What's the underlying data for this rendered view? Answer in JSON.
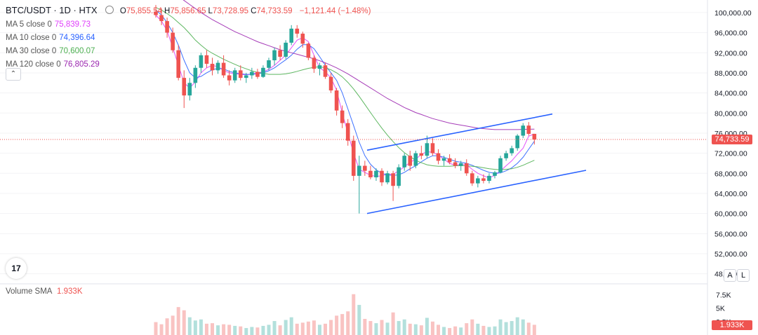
{
  "header": {
    "symbol": "BTC/USDT · 1D · HTX",
    "ohlc": [
      {
        "label": "O",
        "value": "75,855.54"
      },
      {
        "label": "H",
        "value": "75,856.65"
      },
      {
        "label": "L",
        "value": "73,728.95"
      },
      {
        "label": "C",
        "value": "74,733.59"
      }
    ],
    "change": "−1,121.44 (−1.48%)"
  },
  "indicators": [
    {
      "label": "MA 5 close 0",
      "value": "75,839.73",
      "color": "#e040fb"
    },
    {
      "label": "MA 10 close 0",
      "value": "74,396.64",
      "color": "#2962ff"
    },
    {
      "label": "MA 30 close 0",
      "value": "70,600.07",
      "color": "#4caf50"
    },
    {
      "label": "MA 120 close 0",
      "value": "76,805.29",
      "color": "#9c27b0"
    }
  ],
  "volume": {
    "label": "Volume SMA",
    "value": "1.933K",
    "tag": "1.933K"
  },
  "price_axis": [
    "100,000.00",
    "96,000.00",
    "92,000.00",
    "88,000.00",
    "84,000.00",
    "80,000.00",
    "76,000.00",
    "72,000.00",
    "68,000.00",
    "64,000.00",
    "60,000.00",
    "56,000.00",
    "52,000.00",
    "48,000.00"
  ],
  "current_price_tag": "74,733.59",
  "volume_axis": [
    "7.5K",
    "5K",
    "2.5K"
  ],
  "buttons": {
    "auto": "A",
    "log": "L",
    "collapse": "⌃"
  },
  "logo": "17",
  "colors": {
    "up": "#26a69a",
    "down": "#ef5350",
    "trend": "#2962ff"
  },
  "chart_data": {
    "type": "candlestick",
    "ylim": [
      46000,
      102500
    ],
    "current_price": 74733.59,
    "trendlines": [
      {
        "from": {
          "bar": 0,
          "price": 72600
        },
        "to": {
          "bar": 66,
          "price": 79800
        }
      },
      {
        "from": {
          "bar": 0,
          "price": 60000
        },
        "to": {
          "bar": 78,
          "price": 68600
        }
      }
    ],
    "ma_series": [
      {
        "values": [
          99500,
          98300,
          96400,
          93000,
          89500,
          86000,
          85000,
          86200,
          88000,
          89000,
          89500,
          89200,
          88500,
          88000,
          87800,
          87700,
          87600,
          87800,
          88000,
          88200,
          88700,
          89500,
          90500,
          91500,
          93000,
          94500,
          95000,
          94200,
          91500,
          89000,
          88200,
          87000,
          84500,
          80000,
          76000,
          72000,
          68800,
          68200,
          67600,
          67400,
          67500,
          67800,
          67800,
          68500,
          69300,
          70200,
          70800,
          71800,
          72300,
          72200,
          71600,
          70800,
          70000,
          69600,
          69800,
          69700,
          68800,
          68000,
          67500,
          67100,
          67600,
          68500,
          69500,
          70500,
          71800,
          73000,
          75400,
          75839.73
        ],
        "color": "#e040fb"
      },
      {
        "values": [
          100500,
          99500,
          98000,
          96000,
          93500,
          90500,
          88000,
          87000,
          87300,
          88000,
          88600,
          88900,
          88800,
          88300,
          88000,
          87800,
          87700,
          87700,
          87800,
          88000,
          88400,
          89000,
          89800,
          90600,
          91500,
          92700,
          93600,
          93600,
          92800,
          91200,
          89500,
          88000,
          86500,
          84000,
          80800,
          77500,
          74200,
          71500,
          69800,
          68700,
          68000,
          67700,
          67600,
          67700,
          68200,
          68900,
          69500,
          70300,
          71000,
          71500,
          71500,
          71200,
          70800,
          70400,
          70200,
          70000,
          69600,
          69100,
          68600,
          68200,
          68000,
          68100,
          68500,
          69100,
          70000,
          71200,
          72800,
          74396.64
        ],
        "color": "#2962ff"
      },
      {
        "values": [
          101000,
          100500,
          99800,
          99000,
          98000,
          97000,
          95800,
          94500,
          93500,
          92600,
          91900,
          91300,
          90700,
          90200,
          89700,
          89200,
          88800,
          88400,
          88100,
          87900,
          87700,
          87700,
          87700,
          87800,
          88000,
          88300,
          88600,
          88900,
          89100,
          89200,
          89000,
          88600,
          88000,
          87200,
          86100,
          84800,
          83300,
          81700,
          80100,
          78500,
          77000,
          75600,
          74300,
          73100,
          72100,
          71300,
          70600,
          70100,
          69700,
          69500,
          69400,
          69400,
          69400,
          69500,
          69500,
          69500,
          69400,
          69300,
          69100,
          68900,
          68800,
          68700,
          68800,
          68900,
          69200,
          69600,
          70100,
          70600.07
        ],
        "color": "#4caf50"
      },
      {
        "values": [
          106000,
          105400,
          104700,
          104000,
          103200,
          102400,
          101600,
          100800,
          100000,
          99300,
          98600,
          98000,
          97400,
          96800,
          96200,
          95700,
          95200,
          94700,
          94200,
          93800,
          93400,
          93000,
          92600,
          92300,
          92000,
          91700,
          91400,
          91100,
          90800,
          90400,
          90000,
          89500,
          89000,
          88400,
          87800,
          87100,
          86400,
          85700,
          85000,
          84300,
          83600,
          82900,
          82300,
          81700,
          81100,
          80600,
          80100,
          79700,
          79300,
          78900,
          78600,
          78300,
          78000,
          77800,
          77600,
          77400,
          77200,
          77000,
          76900,
          76800,
          76700,
          76700,
          76700,
          76700,
          76700,
          76750,
          76780,
          76805.29
        ],
        "color": "#9c27b0"
      }
    ],
    "candles": [
      {
        "o": 100200,
        "h": 101500,
        "l": 99000,
        "c": 99500,
        "v": 2400
      },
      {
        "o": 99500,
        "h": 100800,
        "l": 97500,
        "c": 98300,
        "v": 2000
      },
      {
        "o": 98300,
        "h": 99000,
        "l": 95000,
        "c": 96000,
        "v": 3100
      },
      {
        "o": 96000,
        "h": 97000,
        "l": 92000,
        "c": 92500,
        "v": 3600
      },
      {
        "o": 92500,
        "h": 93500,
        "l": 86500,
        "c": 87000,
        "v": 5200
      },
      {
        "o": 87000,
        "h": 88500,
        "l": 81000,
        "c": 83500,
        "v": 4600
      },
      {
        "o": 83500,
        "h": 87000,
        "l": 82500,
        "c": 86000,
        "v": 3300
      },
      {
        "o": 86000,
        "h": 89500,
        "l": 85000,
        "c": 89000,
        "v": 2700
      },
      {
        "o": 89000,
        "h": 92000,
        "l": 88000,
        "c": 91500,
        "v": 2900
      },
      {
        "o": 91500,
        "h": 92500,
        "l": 89000,
        "c": 89800,
        "v": 2100
      },
      {
        "o": 89800,
        "h": 91000,
        "l": 87500,
        "c": 88500,
        "v": 2200
      },
      {
        "o": 88500,
        "h": 90500,
        "l": 87800,
        "c": 90000,
        "v": 1800
      },
      {
        "o": 90000,
        "h": 91500,
        "l": 87000,
        "c": 87500,
        "v": 2000
      },
      {
        "o": 87500,
        "h": 88500,
        "l": 85500,
        "c": 86500,
        "v": 1900
      },
      {
        "o": 86500,
        "h": 89000,
        "l": 86000,
        "c": 88500,
        "v": 1700
      },
      {
        "o": 88500,
        "h": 89500,
        "l": 86500,
        "c": 87000,
        "v": 1600
      },
      {
        "o": 87000,
        "h": 88000,
        "l": 86000,
        "c": 87500,
        "v": 1300
      },
      {
        "o": 87500,
        "h": 89000,
        "l": 86800,
        "c": 88200,
        "v": 1500
      },
      {
        "o": 88200,
        "h": 88800,
        "l": 86800,
        "c": 87200,
        "v": 1400
      },
      {
        "o": 87200,
        "h": 89500,
        "l": 87000,
        "c": 89000,
        "v": 1700
      },
      {
        "o": 89000,
        "h": 91000,
        "l": 88500,
        "c": 90500,
        "v": 1900
      },
      {
        "o": 90500,
        "h": 93000,
        "l": 89500,
        "c": 92500,
        "v": 2600
      },
      {
        "o": 92500,
        "h": 93500,
        "l": 90500,
        "c": 91200,
        "v": 1800
      },
      {
        "o": 91200,
        "h": 94500,
        "l": 90800,
        "c": 94000,
        "v": 2800
      },
      {
        "o": 94000,
        "h": 97500,
        "l": 93500,
        "c": 96800,
        "v": 3300
      },
      {
        "o": 96800,
        "h": 97500,
        "l": 95000,
        "c": 95800,
        "v": 2100
      },
      {
        "o": 95800,
        "h": 96200,
        "l": 93000,
        "c": 93800,
        "v": 2300
      },
      {
        "o": 93800,
        "h": 94000,
        "l": 90500,
        "c": 91000,
        "v": 2500
      },
      {
        "o": 91000,
        "h": 91500,
        "l": 88000,
        "c": 88800,
        "v": 2700
      },
      {
        "o": 88800,
        "h": 90000,
        "l": 87500,
        "c": 89500,
        "v": 1900
      },
      {
        "o": 89500,
        "h": 90000,
        "l": 86800,
        "c": 87200,
        "v": 2100
      },
      {
        "o": 87200,
        "h": 88000,
        "l": 84000,
        "c": 84500,
        "v": 2800
      },
      {
        "o": 84500,
        "h": 85000,
        "l": 79500,
        "c": 80500,
        "v": 3600
      },
      {
        "o": 80500,
        "h": 81500,
        "l": 77000,
        "c": 78000,
        "v": 3900
      },
      {
        "o": 78000,
        "h": 78800,
        "l": 73500,
        "c": 74500,
        "v": 4400
      },
      {
        "o": 74500,
        "h": 75500,
        "l": 66500,
        "c": 67500,
        "v": 7600
      },
      {
        "o": 67500,
        "h": 71500,
        "l": 60000,
        "c": 69500,
        "v": 5600
      },
      {
        "o": 69500,
        "h": 70500,
        "l": 67500,
        "c": 68500,
        "v": 3000
      },
      {
        "o": 68500,
        "h": 69500,
        "l": 66800,
        "c": 67200,
        "v": 2600
      },
      {
        "o": 67200,
        "h": 69000,
        "l": 66500,
        "c": 68500,
        "v": 2200
      },
      {
        "o": 68500,
        "h": 69000,
        "l": 65500,
        "c": 66200,
        "v": 2800
      },
      {
        "o": 66200,
        "h": 68500,
        "l": 65800,
        "c": 68000,
        "v": 2300
      },
      {
        "o": 68000,
        "h": 68500,
        "l": 62500,
        "c": 65500,
        "v": 4200
      },
      {
        "o": 65500,
        "h": 69800,
        "l": 65000,
        "c": 69200,
        "v": 2600
      },
      {
        "o": 69200,
        "h": 72000,
        "l": 68500,
        "c": 71500,
        "v": 2900
      },
      {
        "o": 71500,
        "h": 72500,
        "l": 68500,
        "c": 69500,
        "v": 2100
      },
      {
        "o": 69500,
        "h": 72500,
        "l": 69000,
        "c": 72000,
        "v": 2000
      },
      {
        "o": 72000,
        "h": 73500,
        "l": 70800,
        "c": 71500,
        "v": 1800
      },
      {
        "o": 71500,
        "h": 75500,
        "l": 71000,
        "c": 74000,
        "v": 3200
      },
      {
        "o": 74000,
        "h": 75000,
        "l": 71500,
        "c": 72000,
        "v": 2500
      },
      {
        "o": 72000,
        "h": 72800,
        "l": 69800,
        "c": 70500,
        "v": 1900
      },
      {
        "o": 70500,
        "h": 71500,
        "l": 69500,
        "c": 71000,
        "v": 1500
      },
      {
        "o": 71000,
        "h": 71800,
        "l": 69800,
        "c": 70200,
        "v": 1300
      },
      {
        "o": 70200,
        "h": 71000,
        "l": 69000,
        "c": 69500,
        "v": 1600
      },
      {
        "o": 69500,
        "h": 70500,
        "l": 68500,
        "c": 70000,
        "v": 1400
      },
      {
        "o": 70000,
        "h": 70800,
        "l": 67500,
        "c": 68000,
        "v": 2200
      },
      {
        "o": 68000,
        "h": 68500,
        "l": 65500,
        "c": 66000,
        "v": 2900
      },
      {
        "o": 66000,
        "h": 67500,
        "l": 65200,
        "c": 67000,
        "v": 2100
      },
      {
        "o": 67000,
        "h": 67800,
        "l": 66000,
        "c": 66500,
        "v": 1700
      },
      {
        "o": 66500,
        "h": 68000,
        "l": 66000,
        "c": 67500,
        "v": 1500
      },
      {
        "o": 67500,
        "h": 68500,
        "l": 67000,
        "c": 68200,
        "v": 1600
      },
      {
        "o": 68200,
        "h": 71500,
        "l": 68000,
        "c": 71000,
        "v": 2900
      },
      {
        "o": 71000,
        "h": 72500,
        "l": 70500,
        "c": 72000,
        "v": 2400
      },
      {
        "o": 72000,
        "h": 73500,
        "l": 71500,
        "c": 73000,
        "v": 2600
      },
      {
        "o": 73000,
        "h": 75800,
        "l": 72500,
        "c": 75500,
        "v": 3300
      },
      {
        "o": 75500,
        "h": 78000,
        "l": 75000,
        "c": 77500,
        "v": 2900
      },
      {
        "o": 77500,
        "h": 78200,
        "l": 75500,
        "c": 75856,
        "v": 2300
      },
      {
        "o": 75855.54,
        "h": 75856.65,
        "l": 73728.95,
        "c": 74733.59,
        "v": 1900
      }
    ]
  }
}
